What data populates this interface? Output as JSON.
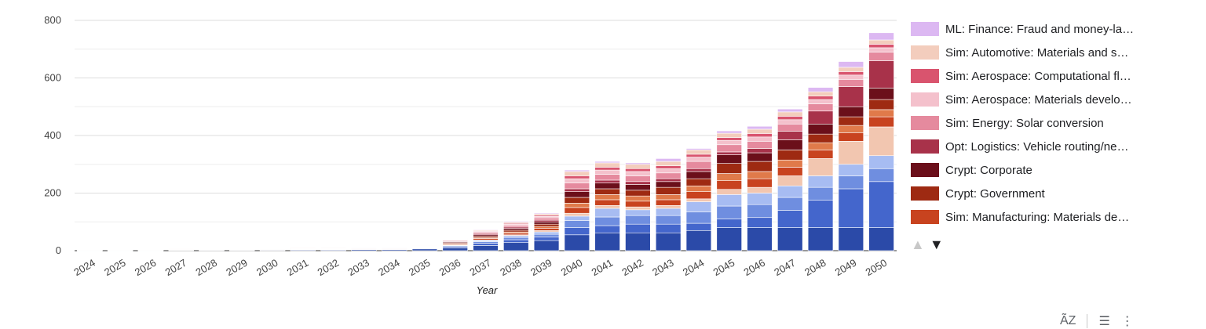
{
  "chart_data": {
    "type": "bar",
    "stacked": true,
    "xlabel": "Year",
    "ylim": [
      0,
      800
    ],
    "yticks": [
      0,
      200,
      400,
      600,
      800
    ],
    "grid": true,
    "legend_position": "right",
    "categories": [
      "2024",
      "2025",
      "2026",
      "2027",
      "2028",
      "2029",
      "2030",
      "2031",
      "2032",
      "2033",
      "2034",
      "2035",
      "2036",
      "2037",
      "2038",
      "2039",
      "2040",
      "2041",
      "2042",
      "2043",
      "2044",
      "2045",
      "2046",
      "2047",
      "2048",
      "2049",
      "2050"
    ],
    "series": [
      {
        "name": "",
        "color": "#2b4aa8",
        "values": [
          1,
          1,
          1,
          2,
          2,
          2,
          2,
          3,
          3,
          4,
          4,
          6,
          10,
          18,
          28,
          35,
          55,
          62,
          62,
          62,
          70,
          80,
          80,
          80,
          80,
          80,
          80
        ]
      },
      {
        "name": "",
        "color": "#4466cc",
        "values": [
          0.5,
          0.5,
          0.5,
          0.5,
          0.5,
          0.5,
          1,
          1,
          1,
          1,
          1,
          2,
          4,
          8,
          10,
          12,
          25,
          25,
          30,
          30,
          25,
          30,
          35,
          60,
          95,
          135,
          160
        ]
      },
      {
        "name": "",
        "color": "#6f8ee0",
        "values": [
          0,
          0,
          0,
          0,
          0,
          0,
          0,
          0.5,
          0.5,
          0.5,
          0.5,
          1,
          3,
          5,
          8,
          10,
          25,
          30,
          30,
          30,
          40,
          45,
          45,
          45,
          45,
          45,
          45
        ]
      },
      {
        "name": "",
        "color": "#a7bcf2",
        "values": [
          0,
          0,
          0,
          0,
          0,
          0,
          0,
          0.5,
          0.5,
          0.5,
          0.5,
          1,
          2,
          4,
          6,
          8,
          15,
          30,
          20,
          25,
          35,
          40,
          40,
          40,
          40,
          40,
          45
        ]
      },
      {
        "name": "",
        "color": "#f2c6b0",
        "values": [
          0,
          0,
          0,
          0,
          0,
          0,
          0,
          0,
          0,
          0,
          0,
          0.5,
          1,
          2,
          3,
          5,
          10,
          10,
          10,
          10,
          10,
          18,
          20,
          35,
          60,
          80,
          100
        ]
      },
      {
        "name": "Sim: Manufacturing: Materials de…",
        "color": "#c8431f",
        "values": [
          0.5,
          0.5,
          0.5,
          1,
          0.5,
          0.5,
          1,
          1,
          1,
          1,
          1,
          1.5,
          3,
          5,
          6,
          8,
          20,
          20,
          20,
          20,
          25,
          30,
          30,
          30,
          30,
          30,
          35
        ]
      },
      {
        "name": "",
        "color": "#e07a4a",
        "values": [
          0,
          0,
          0,
          0,
          0,
          0,
          0,
          0.5,
          0.5,
          0.5,
          0.5,
          1,
          2,
          3,
          4,
          6,
          15,
          18,
          18,
          18,
          20,
          25,
          25,
          25,
          25,
          25,
          25
        ]
      },
      {
        "name": "Crypt: Government",
        "color": "#9e2a12",
        "values": [
          0.5,
          0.5,
          0.5,
          0.5,
          0.5,
          0.5,
          0.5,
          1,
          1,
          1,
          1,
          1.5,
          3,
          5,
          6,
          8,
          20,
          20,
          20,
          25,
          25,
          35,
          35,
          35,
          30,
          30,
          35
        ]
      },
      {
        "name": "Crypt: Corporate",
        "color": "#6b0f1a",
        "values": [
          0.5,
          0.5,
          0.5,
          0.5,
          0.5,
          0.5,
          0.5,
          1,
          1,
          1,
          1,
          1.5,
          3,
          5,
          6,
          8,
          20,
          20,
          20,
          20,
          25,
          30,
          30,
          35,
          35,
          35,
          40
        ]
      },
      {
        "name": "Opt: Logistics: Vehicle routing/ne…",
        "color": "#a8324a",
        "values": [
          0,
          0,
          0,
          0,
          0,
          0,
          0,
          0.5,
          0.5,
          0.5,
          0.5,
          1,
          2,
          4,
          5,
          6,
          10,
          10,
          10,
          10,
          10,
          10,
          15,
          30,
          45,
          70,
          95
        ]
      },
      {
        "name": "Sim: Energy: Solar conversion",
        "color": "#e58a9e",
        "values": [
          0.5,
          0.5,
          0.5,
          0.5,
          0.5,
          0.5,
          0.5,
          1,
          1,
          1,
          1,
          1,
          3,
          5,
          6,
          8,
          20,
          20,
          20,
          20,
          25,
          25,
          25,
          25,
          25,
          25,
          30
        ]
      },
      {
        "name": "Sim: Aerospace: Materials develo…",
        "color": "#f4c1cc",
        "values": [
          0,
          0,
          0,
          0,
          0,
          0,
          0,
          0.5,
          0.5,
          0.5,
          0.5,
          1,
          2,
          3,
          4,
          5,
          15,
          15,
          15,
          15,
          15,
          15,
          15,
          15,
          15,
          15,
          15
        ]
      },
      {
        "name": "Sim: Aerospace: Computational fl…",
        "color": "#d9546e",
        "values": [
          0,
          0,
          0,
          0,
          0,
          0,
          0,
          0.5,
          0.5,
          0.5,
          0.5,
          0.5,
          1,
          2,
          3,
          4,
          10,
          10,
          10,
          10,
          10,
          10,
          12,
          12,
          12,
          12,
          12
        ]
      },
      {
        "name": "Sim: Automotive: Materials and s…",
        "color": "#f3cdbd",
        "values": [
          0.5,
          0.5,
          0.5,
          0.5,
          0.5,
          0.5,
          0.5,
          1,
          1,
          1,
          1,
          1,
          2,
          3,
          4,
          5,
          15,
          15,
          15,
          15,
          15,
          15,
          15,
          15,
          15,
          15,
          15
        ]
      },
      {
        "name": "ML: Finance: Fraud and money-la…",
        "color": "#dcb8f2",
        "values": [
          0,
          0,
          0,
          0,
          0,
          0,
          0,
          0,
          0.5,
          0.5,
          0.5,
          0.5,
          1,
          2,
          3,
          3,
          5,
          5,
          5,
          10,
          5,
          8,
          10,
          10,
          15,
          20,
          25
        ]
      }
    ]
  },
  "legend_pager": {
    "up": "▲",
    "down": "▼"
  },
  "footer": {
    "sort_icon": "sort-az-icon",
    "filter_icon": "filter-icon",
    "menu_icon": "more-vert-icon",
    "sort_label": "A͂Z",
    "filter_label": "☰",
    "menu_label": "⋮"
  }
}
